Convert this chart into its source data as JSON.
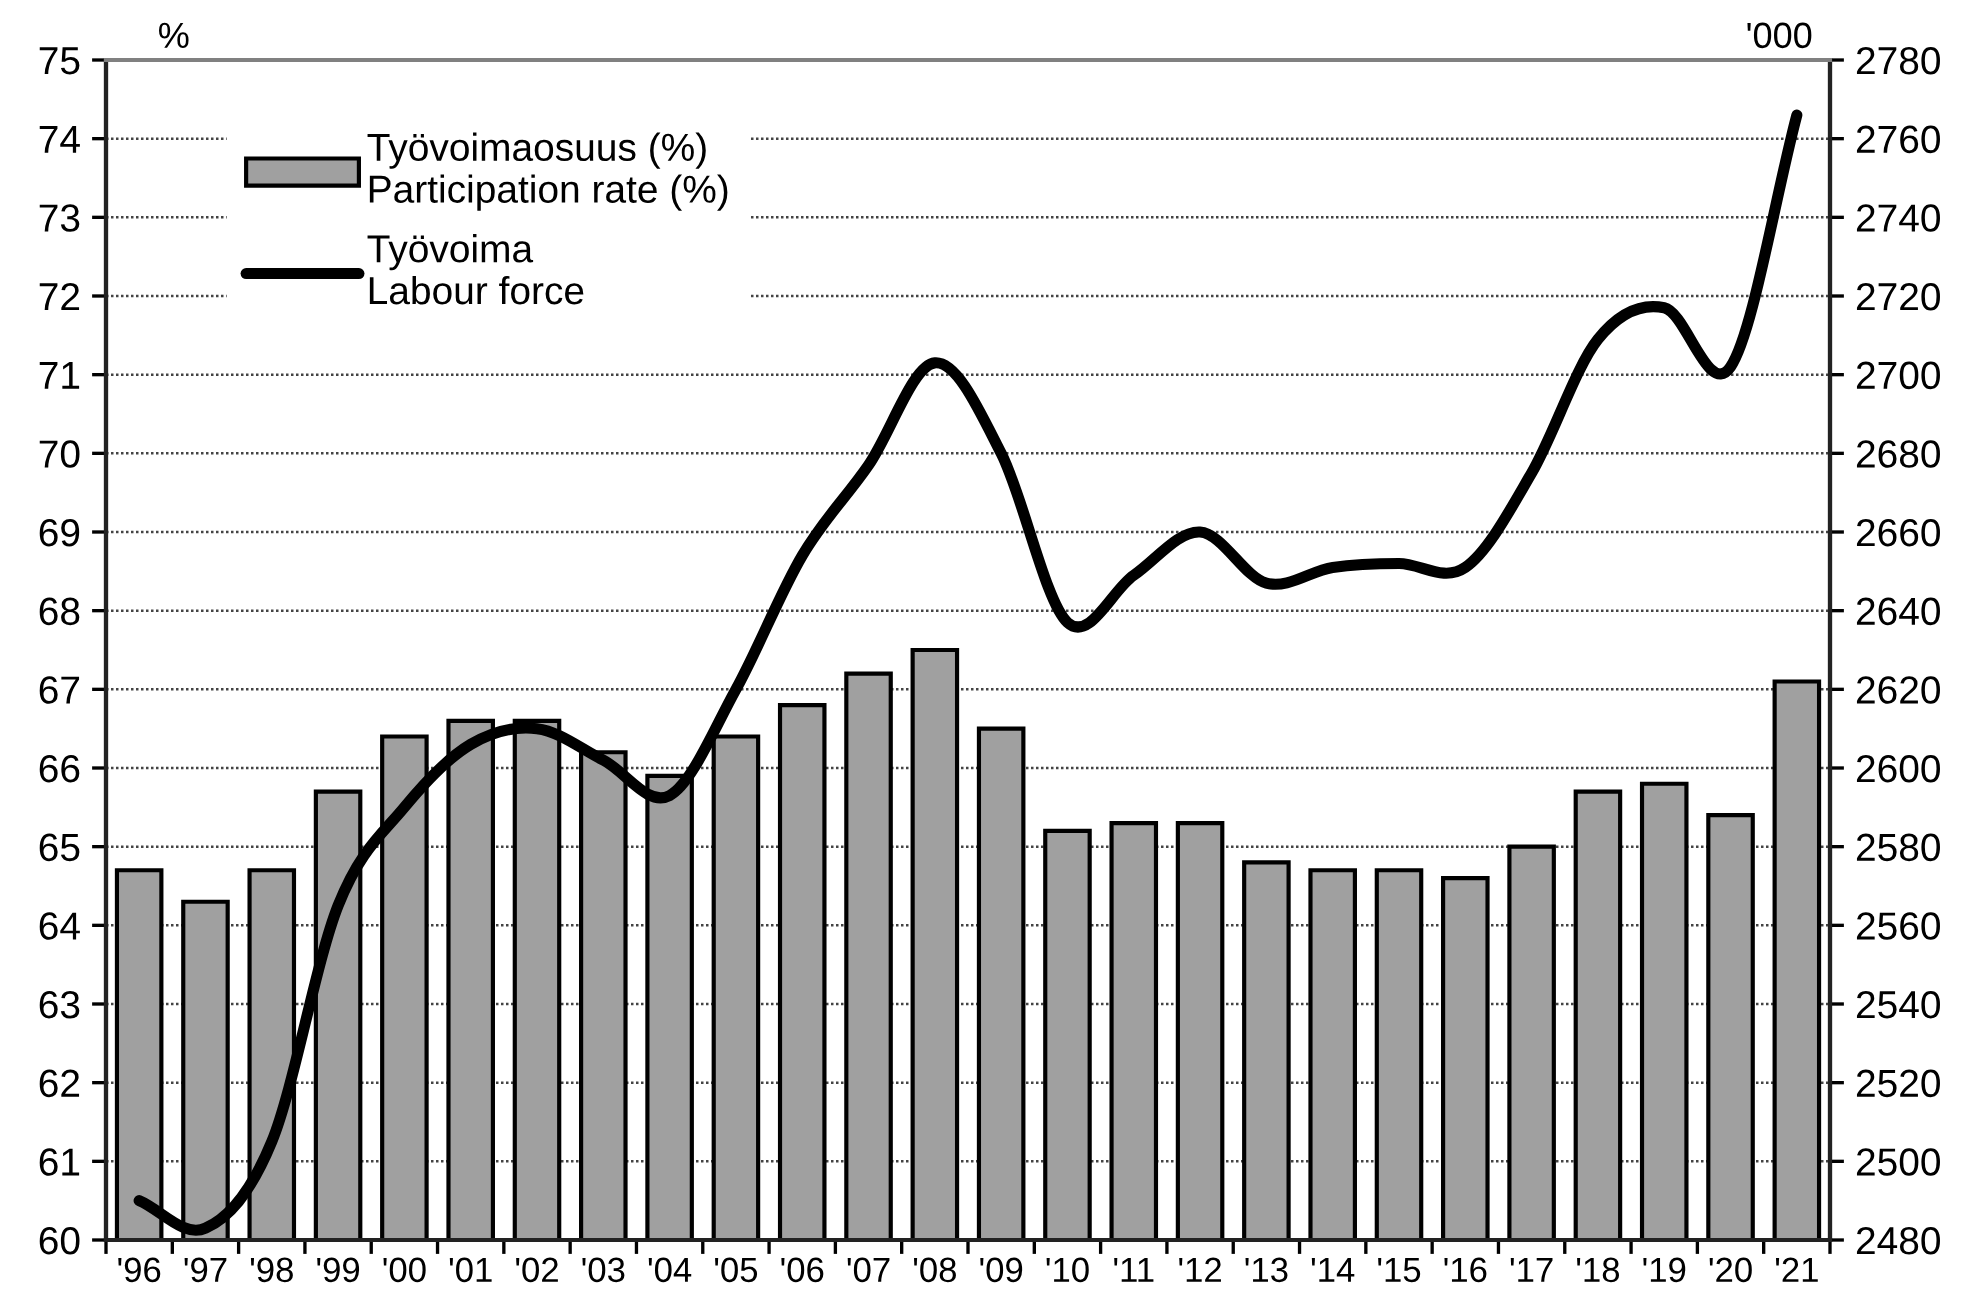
{
  "chart_data": {
    "type": "bar",
    "categories": [
      "'96",
      "'97",
      "'98",
      "'99",
      "'00",
      "'01",
      "'02",
      "'03",
      "'04",
      "'05",
      "'06",
      "'07",
      "'08",
      "'09",
      "'10",
      "'11",
      "'12",
      "'13",
      "'14",
      "'15",
      "'16",
      "'17",
      "'18",
      "'19",
      "'20",
      "'21"
    ],
    "series": [
      {
        "name": "Työvoimaosuus (%)\nParticipation rate (%)",
        "color": "#a0a0a0",
        "values": [
          64.7,
          64.3,
          64.7,
          65.7,
          66.4,
          66.6,
          66.6,
          66.2,
          65.9,
          66.4,
          66.8,
          67.2,
          67.5,
          66.5,
          65.2,
          65.3,
          65.3,
          64.8,
          64.7,
          64.7,
          64.6,
          65.0,
          65.7,
          65.8,
          65.4,
          67.1
        ]
      },
      {
        "name": "Työvoima\nLabour force",
        "type": "line",
        "axis": "y2",
        "color": "#000000",
        "values": [
          2490,
          2483,
          2505,
          2565,
          2590,
          2606,
          2610,
          2602,
          2593,
          2620,
          2654,
          2677,
          2703,
          2680,
          2637,
          2649,
          2660,
          2647,
          2651,
          2652,
          2651,
          2675,
          2709,
          2717,
          2702,
          2766
        ]
      }
    ],
    "ylabel": "%",
    "y2label": "'000",
    "ylim": [
      60,
      75
    ],
    "yticks": [
      60,
      61,
      62,
      63,
      64,
      65,
      66,
      67,
      68,
      69,
      70,
      71,
      72,
      73,
      74,
      75
    ],
    "y2lim": [
      2480,
      2780
    ],
    "y2ticks": [
      2480,
      2500,
      2520,
      2540,
      2560,
      2580,
      2600,
      2620,
      2640,
      2660,
      2680,
      2700,
      2720,
      2740,
      2760,
      2780
    ],
    "grid": "y",
    "legend": "top left"
  }
}
